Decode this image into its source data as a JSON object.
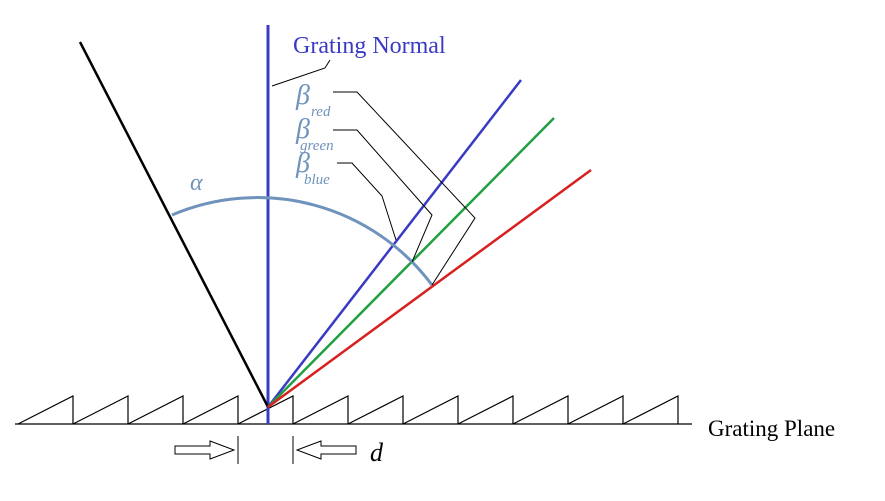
{
  "labels": {
    "normal": "Grating Normal",
    "plane": "Grating Plane",
    "alpha": "α",
    "betas": [
      {
        "symbol": "β",
        "subscript": "red"
      },
      {
        "symbol": "β",
        "subscript": "green"
      },
      {
        "symbol": "β",
        "subscript": "blue"
      }
    ],
    "spacing": "d"
  }
}
